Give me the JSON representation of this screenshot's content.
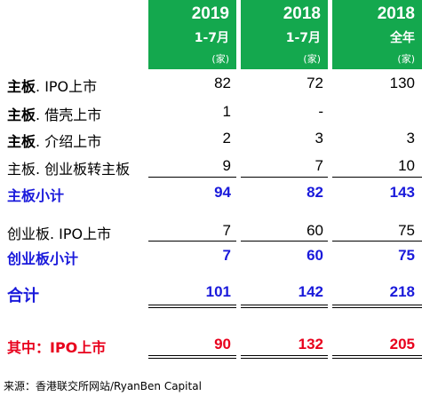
{
  "header": {
    "columns": [
      {
        "year": "2019",
        "period": "1-7月",
        "unit": "(家)"
      },
      {
        "year": "2018",
        "period": "1-7月",
        "unit": "(家)"
      },
      {
        "year": "2018",
        "period": "全年",
        "unit": "(家)"
      }
    ]
  },
  "rows": [
    {
      "prefix": "主板",
      "label": ". IPO上市",
      "values": [
        "82",
        "72",
        "130"
      ]
    },
    {
      "prefix": "主板",
      "label": ". 借壳上市",
      "values": [
        "1",
        "-",
        ""
      ]
    },
    {
      "prefix": "主板",
      "label": ". 介绍上市",
      "values": [
        "2",
        "3",
        "3"
      ]
    },
    {
      "prefix": "",
      "label": "主板. 创业板转主板",
      "values": [
        "9",
        "7",
        "10"
      ]
    },
    {
      "prefix": "",
      "label": "主板小计",
      "values": [
        "94",
        "82",
        "143"
      ]
    },
    {
      "prefix": "",
      "label": "创业板. IPO上市",
      "values": [
        "7",
        "60",
        "75"
      ]
    },
    {
      "prefix": "",
      "label": "创业板小计",
      "values": [
        "7",
        "60",
        "75"
      ]
    },
    {
      "prefix": "",
      "label": "合计",
      "values": [
        "101",
        "142",
        "218"
      ]
    },
    {
      "prefix": "",
      "label": "其中：IPO上市",
      "values": [
        "90",
        "132",
        "205"
      ]
    }
  ],
  "source": "来源：香港联交所网站/RyanBen Capital",
  "colors": {
    "header_green": "#14a84e",
    "subtotal_blue": "#1a1adb",
    "highlight_red": "#e8001c"
  }
}
